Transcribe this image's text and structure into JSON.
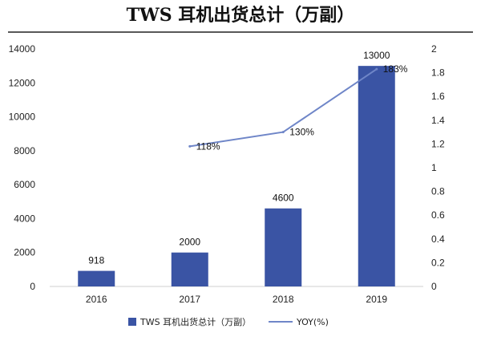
{
  "chart_data": {
    "type": "bar+line",
    "title": "TWS 耳机出货总计（万副）",
    "categories": [
      "2016",
      "2017",
      "2018",
      "2019"
    ],
    "series": [
      {
        "name": "TWS 耳机出货总计（万副）",
        "type": "bar",
        "axis": "left",
        "values": [
          918,
          2000,
          4600,
          13000
        ],
        "labels": [
          "918",
          "2000",
          "4600",
          "13000"
        ],
        "color": "#3a54a4"
      },
      {
        "name": "YOY(%)",
        "type": "line",
        "axis": "right",
        "values": [
          null,
          1.18,
          1.3,
          1.83
        ],
        "labels": [
          "",
          "118%",
          "130%",
          "183%"
        ],
        "color": "#6f86c8"
      }
    ],
    "y_left": {
      "min": 0,
      "max": 14000,
      "ticks": [
        "0",
        "2000",
        "4000",
        "6000",
        "8000",
        "10000",
        "12000",
        "14000"
      ]
    },
    "y_right": {
      "min": 0,
      "max": 2,
      "ticks": [
        "0",
        "0.2",
        "0.4",
        "0.6",
        "0.8",
        "1",
        "1.2",
        "1.4",
        "1.6",
        "1.8",
        "2"
      ]
    },
    "legend": {
      "position": "bottom"
    },
    "grid": false
  }
}
